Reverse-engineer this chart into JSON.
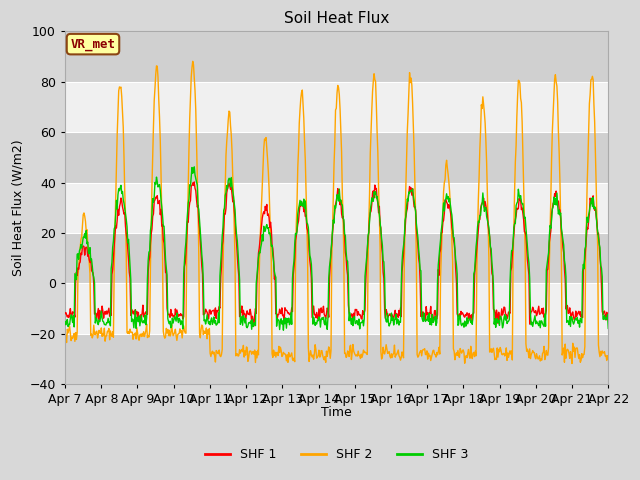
{
  "title": "Soil Heat Flux",
  "ylabel": "Soil Heat Flux (W/m2)",
  "xlabel": "Time",
  "ylim": [
    -40,
    100
  ],
  "colors": {
    "SHF 1": "#ff0000",
    "SHF 2": "#ffa500",
    "SHF 3": "#00cc00"
  },
  "legend_label": "VR_met",
  "tick_labels": [
    "Apr 7",
    "Apr 8",
    "Apr 9",
    "Apr 10",
    "Apr 11",
    "Apr 12",
    "Apr 13",
    "Apr 14",
    "Apr 15",
    "Apr 16",
    "Apr 17",
    "Apr 18",
    "Apr 19",
    "Apr 20",
    "Apr 21",
    "Apr 22"
  ],
  "linewidth": 1.0,
  "bg_outer": "#d8d8d8",
  "band_dark": "#d0d0d0",
  "band_light": "#f0f0f0",
  "grid_color": "white",
  "shf2_night_early": -20,
  "shf2_night_late": -30
}
